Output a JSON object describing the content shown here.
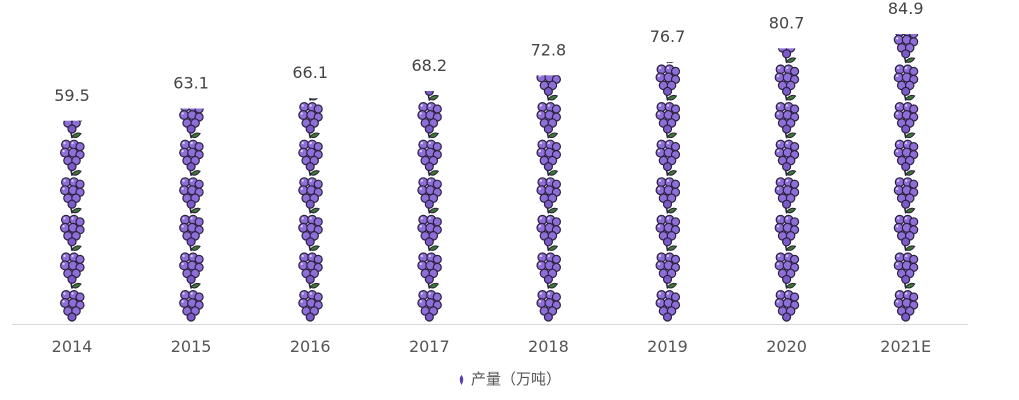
{
  "chart_data": {
    "type": "bar",
    "subtype": "pictorial",
    "categories": [
      "2014",
      "2015",
      "2016",
      "2017",
      "2018",
      "2019",
      "2020",
      "2021E"
    ],
    "series": [
      {
        "name": "产量（万吨）",
        "values": [
          59.5,
          63.1,
          66.1,
          68.2,
          72.8,
          76.7,
          80.7,
          84.9
        ]
      }
    ],
    "data_labels": [
      "59.5",
      "63.1",
      "66.1",
      "68.2",
      "72.8",
      "76.7",
      "80.7",
      "84.9"
    ],
    "symbol": "grape-icon",
    "ylim": [
      0,
      84.9
    ],
    "grid": false,
    "legend": {
      "position": "bottom",
      "label": "产量（万吨）"
    },
    "colors": {
      "grape": "#8e6fd8",
      "grape_dark": "#5b3fa8",
      "outline": "#2b2140",
      "leaf": "#3a7a2c",
      "legend_marker": "#5b3fa8",
      "axis": "#d9d9d9",
      "tick_text": "#555555",
      "label_text": "#444444"
    }
  }
}
